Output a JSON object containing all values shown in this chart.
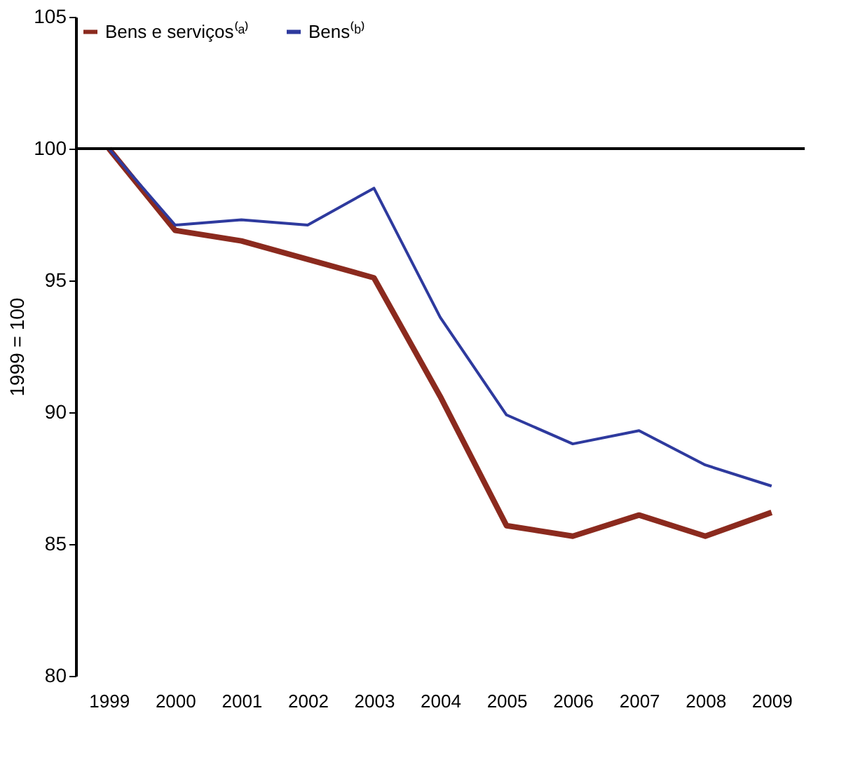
{
  "chart_data": {
    "type": "line",
    "ylabel": "1999 = 100",
    "categories": [
      "1999",
      "2000",
      "2001",
      "2002",
      "2003",
      "2004",
      "2005",
      "2006",
      "2007",
      "2008",
      "2009"
    ],
    "series": [
      {
        "name": "Bens e serviços⁽ᵃ⁾",
        "color": "#8b2a1e",
        "values": [
          100,
          96.9,
          96.5,
          95.8,
          95.1,
          90.6,
          85.7,
          85.3,
          86.1,
          85.3,
          86.2
        ]
      },
      {
        "name": "Bens⁽ᵇ⁾",
        "color": "#2e3a9e",
        "values": [
          100,
          97.1,
          97.3,
          97.1,
          98.5,
          93.6,
          89.9,
          88.8,
          89.3,
          88.0,
          87.2
        ]
      }
    ],
    "ylim": [
      80,
      105
    ],
    "yticks": [
      80,
      85,
      90,
      95,
      100,
      105
    ],
    "ref_lines": [
      {
        "axis": "y",
        "value": 100,
        "color": "#000000"
      }
    ],
    "grid": false,
    "legend": "top left",
    "marker": "none",
    "line_style": "solid"
  }
}
